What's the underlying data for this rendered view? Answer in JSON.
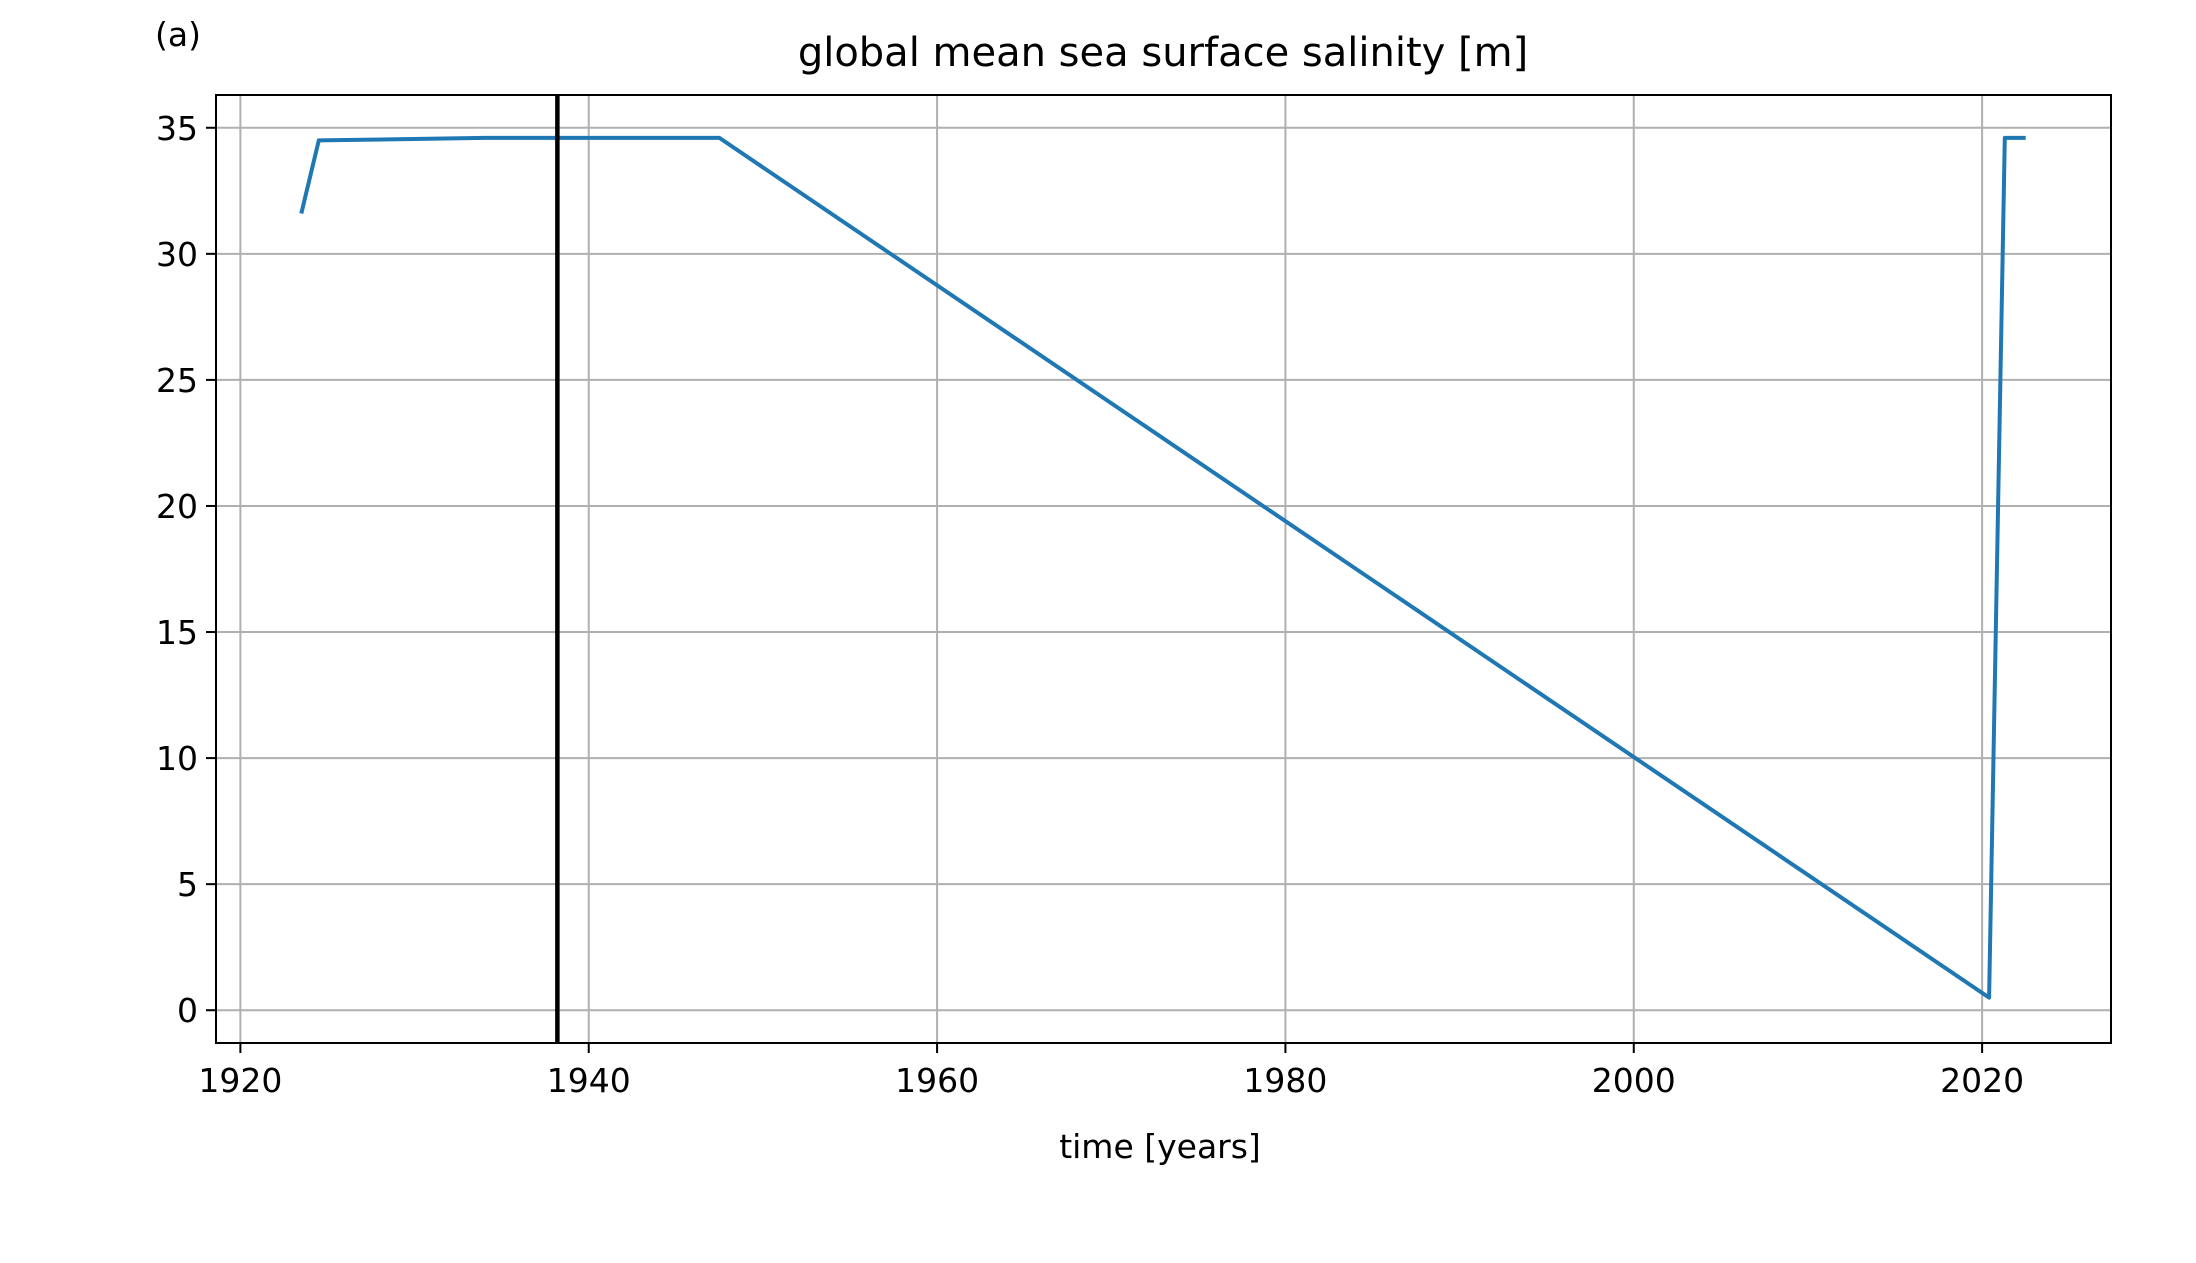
{
  "chart_data": {
    "type": "line",
    "panel_label": "(a)",
    "title": "global mean sea surface salinity [m]",
    "xlabel": "time [years]",
    "ylabel": "",
    "xlim": [
      1918.6,
      2027.4
    ],
    "ylim": [
      -1.3,
      36.3
    ],
    "x_ticks": [
      1920,
      1940,
      1960,
      1980,
      2000,
      2020
    ],
    "x_tick_labels": [
      "1920",
      "1940",
      "1960",
      "1980",
      "2000",
      "2020"
    ],
    "y_ticks": [
      0,
      5,
      10,
      15,
      20,
      25,
      30,
      35
    ],
    "y_tick_labels": [
      "0",
      "5",
      "10",
      "15",
      "20",
      "25",
      "30",
      "35"
    ],
    "grid": true,
    "series": [
      {
        "color": "#1f77b4",
        "x": [
          1923.5,
          1924.5,
          1934,
          1947.5,
          2020.4,
          2021.3,
          2022.5
        ],
        "y": [
          31.6,
          34.5,
          34.6,
          34.6,
          0.5,
          34.6,
          34.6
        ]
      }
    ],
    "vlines": [
      {
        "x": 1938.2,
        "color": "#000000"
      }
    ]
  }
}
